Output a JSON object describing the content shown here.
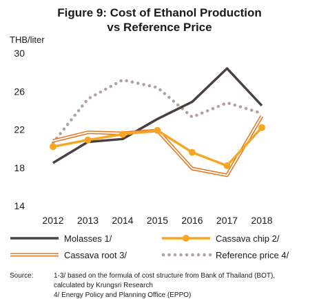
{
  "chart_data": {
    "type": "line",
    "title": [
      "Figure 9: Cost of Ethanol Production",
      "vs Reference Price"
    ],
    "ylabel": "THB/liter",
    "xlabel": "",
    "categories": [
      "2012",
      "2013",
      "2014",
      "2015",
      "2016",
      "2017",
      "2018"
    ],
    "ylim": [
      14,
      30
    ],
    "yticks": [
      "14",
      "18",
      "22",
      "26",
      "30"
    ],
    "grid": false,
    "legend_position": "bottom",
    "series": [
      {
        "name": "Molasses 1/",
        "values": [
          18.5,
          20.7,
          21.0,
          23.1,
          24.9,
          28.4,
          24.5
        ],
        "color": "#4a4040",
        "style": "solid"
      },
      {
        "name": "Cassava chip 2/",
        "values": [
          20.2,
          20.9,
          21.5,
          21.9,
          19.6,
          18.2,
          22.2
        ],
        "color": "#f5a623",
        "style": "solid-markers"
      },
      {
        "name": "Cassava root 3/",
        "values": [
          20.8,
          21.7,
          21.6,
          21.9,
          17.9,
          17.2,
          23.4
        ],
        "color": "#e8731e",
        "style": "double-line"
      },
      {
        "name": "Reference price 4/",
        "values": [
          20.6,
          25.2,
          27.2,
          26.4,
          23.3,
          24.8,
          23.7
        ],
        "color": "#b3a29f",
        "style": "dotted"
      }
    ]
  },
  "source": {
    "label": "Source:",
    "line1": "1-3/  based on the formula of cost structure from Bank of Thailand (BOT),",
    "line2": "calculated by Krungsri Research",
    "line3": "4/  Energy Policy and Planning Office (EPPO)"
  }
}
